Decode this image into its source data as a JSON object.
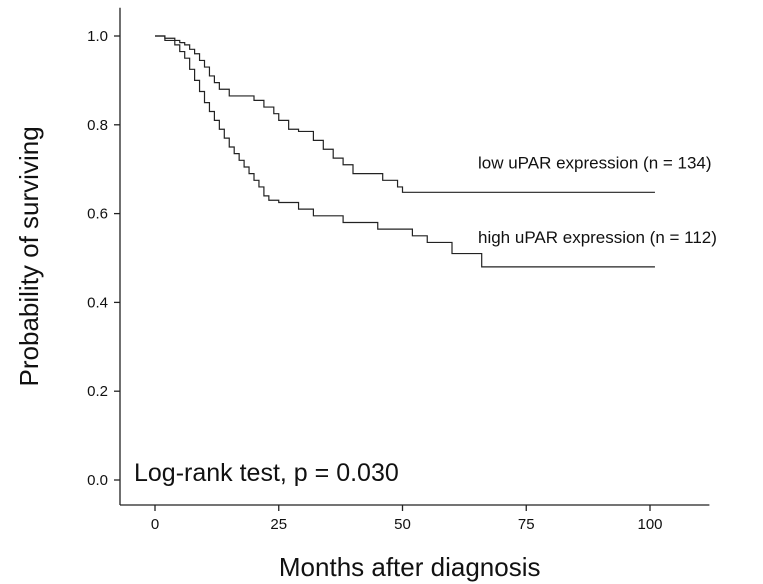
{
  "chart_data": {
    "type": "line",
    "title": "",
    "xlabel": "Months after diagnosis",
    "ylabel": "Probability of surviving",
    "xlim": [
      -8,
      112
    ],
    "ylim": [
      0,
      1.05
    ],
    "x_ticks": [
      0,
      25,
      50,
      75,
      100
    ],
    "x_tick_labels": [
      "0",
      "25",
      "50",
      "75",
      "100"
    ],
    "y_ticks": [
      0,
      0.2,
      0.4,
      0.6,
      0.8,
      1.0
    ],
    "y_tick_labels": [
      "0.0",
      "0.2",
      "0.4",
      "0.6",
      "0.8",
      "1.0"
    ],
    "grid": false,
    "annotation": "Log-rank test, p = 0.030",
    "series": [
      {
        "label": "low uPAR expression (n = 134)",
        "step": true,
        "x": [
          0,
          2,
          4,
          5,
          6,
          7,
          8,
          9,
          10,
          11,
          12,
          13,
          15,
          18,
          20,
          22,
          24,
          25,
          27,
          29,
          32,
          34,
          36,
          38,
          40,
          44,
          46,
          49,
          50,
          55,
          60,
          65,
          70,
          80,
          90,
          101
        ],
        "y": [
          1.0,
          0.995,
          0.99,
          0.985,
          0.98,
          0.97,
          0.96,
          0.945,
          0.93,
          0.91,
          0.895,
          0.88,
          0.865,
          0.865,
          0.855,
          0.84,
          0.825,
          0.81,
          0.79,
          0.785,
          0.765,
          0.745,
          0.725,
          0.71,
          0.69,
          0.69,
          0.675,
          0.66,
          0.648,
          0.648,
          0.648,
          0.648,
          0.648,
          0.648,
          0.648,
          0.648
        ]
      },
      {
        "label": "high uPAR expression (n = 112)",
        "step": true,
        "x": [
          0,
          2,
          4,
          5,
          6,
          7,
          8,
          9,
          10,
          11,
          12,
          13,
          14,
          15,
          16,
          17,
          18,
          19,
          20,
          21,
          22,
          23,
          25,
          29,
          32,
          38,
          45,
          52,
          55,
          60,
          66,
          80,
          101
        ],
        "y": [
          1.0,
          0.99,
          0.98,
          0.965,
          0.95,
          0.925,
          0.9,
          0.875,
          0.85,
          0.83,
          0.81,
          0.79,
          0.77,
          0.75,
          0.735,
          0.72,
          0.705,
          0.69,
          0.675,
          0.66,
          0.64,
          0.63,
          0.625,
          0.61,
          0.595,
          0.58,
          0.565,
          0.55,
          0.535,
          0.51,
          0.48,
          0.48,
          0.48
        ]
      }
    ]
  }
}
